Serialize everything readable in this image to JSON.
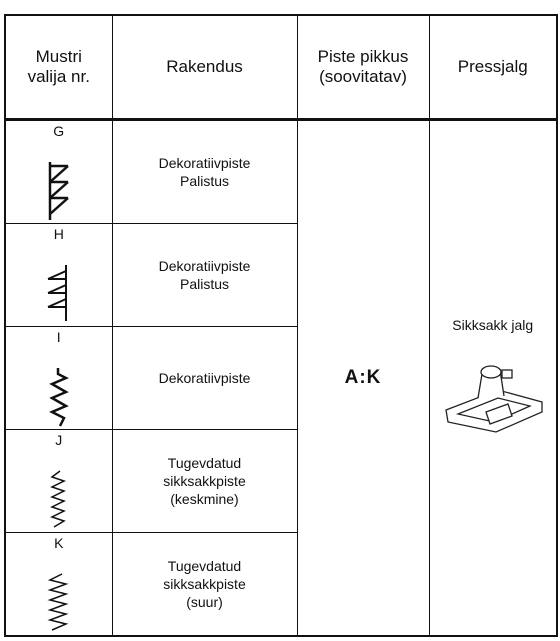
{
  "header": [
    "Mustri\nvalija nr.",
    "Rakendus",
    "Piste pikkus\n(soovitatav)",
    "Pressjalg"
  ],
  "rows": [
    {
      "letter": "G",
      "application": "Dekoratiivpiste\nPalistus"
    },
    {
      "letter": "H",
      "application": "Dekoratiivpiste\nPalistus"
    },
    {
      "letter": "I",
      "application": "Dekoratiivpiste"
    },
    {
      "letter": "J",
      "application": "Tugevdatud\nsikksakkpiste\n(keskmine)"
    },
    {
      "letter": "K",
      "application": "Tugevdatud\nsikksakkpiste\n(suur)"
    }
  ],
  "stitch_length": "A:K",
  "presser_foot": "Sikksakk jalg"
}
